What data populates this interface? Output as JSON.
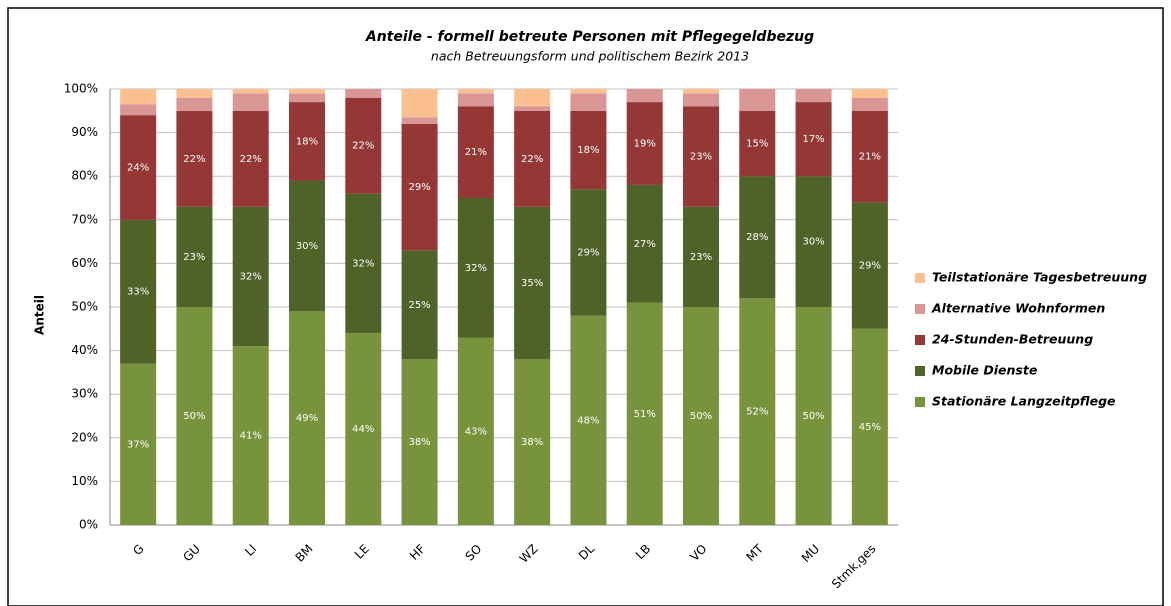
{
  "chart_data": {
    "type": "bar",
    "stacked": true,
    "title": "Anteile - formell betreute Personen mit Pflegegeldbezug",
    "subtitle": "nach Betreuungsform und politischem Bezirk 2013",
    "y_label": "Anteil",
    "categories": [
      "G",
      "GU",
      "LI",
      "BM",
      "LE",
      "HF",
      "SO",
      "WZ",
      "DL",
      "LB",
      "VO",
      "MT",
      "MU",
      "Stmk,ges"
    ],
    "series": [
      {
        "name": "Stationäre Langzeitpflege",
        "color": "#77933c",
        "values": [
          37,
          50,
          41,
          49,
          44,
          38,
          43,
          38,
          48,
          51,
          50,
          52,
          50,
          45
        ],
        "value_labels": [
          "37%",
          "50%",
          "41%",
          "49%",
          "44%",
          "38%",
          "43%",
          "38%",
          "48%",
          "51%",
          "50%",
          "52%",
          "50%",
          "45%"
        ]
      },
      {
        "name": "Mobile Dienste",
        "color": "#4f6228",
        "values": [
          33,
          23,
          32,
          30,
          32,
          25,
          32,
          35,
          29,
          27,
          23,
          28,
          30,
          29
        ],
        "value_labels": [
          "33%",
          "23%",
          "32%",
          "30%",
          "32%",
          "25%",
          "32%",
          "35%",
          "29%",
          "27%",
          "23%",
          "28%",
          "30%",
          "29%"
        ]
      },
      {
        "name": "24-Stunden-Betreuung",
        "color": "#953735",
        "values": [
          24,
          22,
          22,
          18,
          22,
          29,
          21,
          22,
          18,
          19,
          23,
          15,
          17,
          21
        ],
        "value_labels": [
          "24%",
          "22%",
          "22%",
          "18%",
          "22%",
          "29%",
          "21%",
          "22%",
          "18%",
          "19%",
          "23%",
          "15%",
          "17%",
          "21%"
        ]
      },
      {
        "name": "Alternative Wohnformen",
        "color": "#d99694",
        "values": [
          2.5,
          3,
          4,
          2,
          2,
          1.5,
          3,
          1,
          4,
          3,
          3,
          5,
          3,
          3
        ]
      },
      {
        "name": "Teilstationäre Tagesbetreuung",
        "color": "#fac090",
        "values": [
          3.5,
          2,
          1,
          1,
          0,
          6.5,
          1,
          4,
          1,
          0,
          1,
          0,
          0,
          2
        ]
      }
    ],
    "ylim": [
      0,
      100
    ],
    "yticks": [
      {
        "value": 0,
        "label": "0%"
      },
      {
        "value": 10,
        "label": "10%"
      },
      {
        "value": 20,
        "label": "20%"
      },
      {
        "value": 30,
        "label": "30%"
      },
      {
        "value": 40,
        "label": "40%"
      },
      {
        "value": 50,
        "label": "50%"
      },
      {
        "value": 60,
        "label": "60%"
      },
      {
        "value": 70,
        "label": "70%"
      },
      {
        "value": 80,
        "label": "80%"
      },
      {
        "value": 90,
        "label": "90%"
      },
      {
        "value": 100,
        "label": "100%"
      }
    ],
    "grid": true,
    "legend": "right"
  }
}
